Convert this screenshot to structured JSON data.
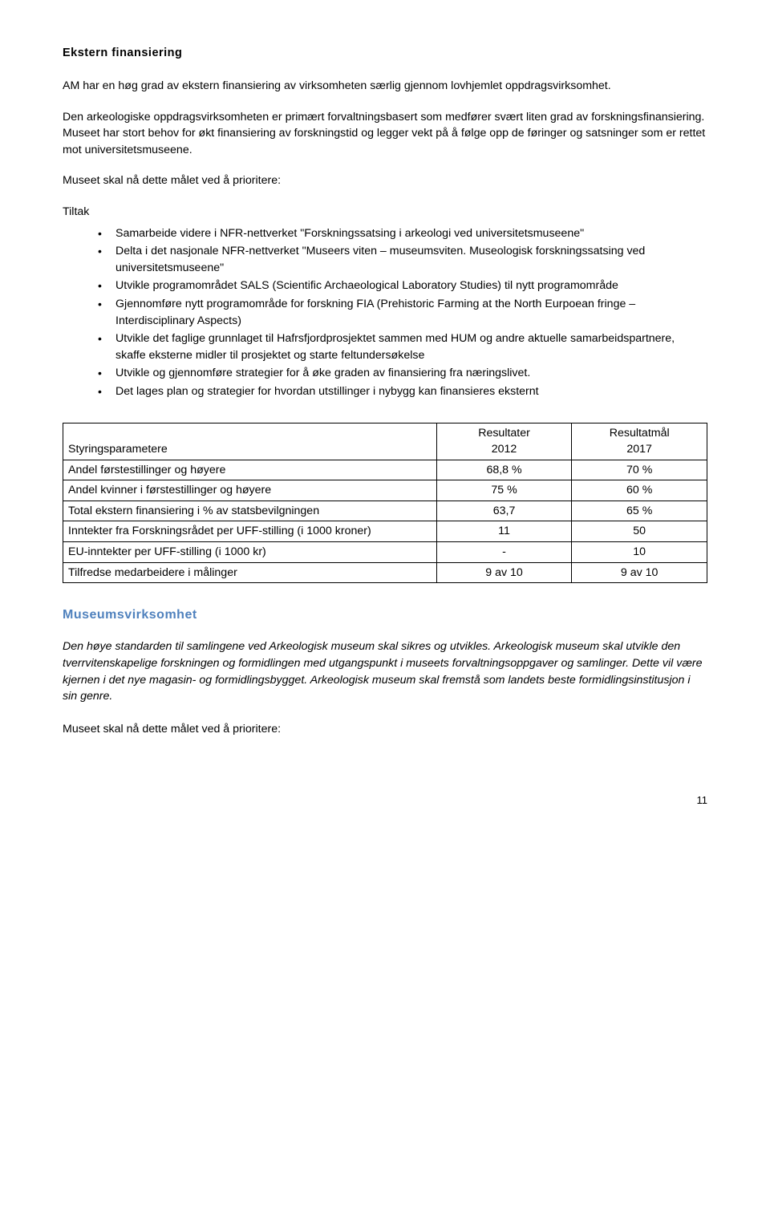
{
  "section1": {
    "title": "Ekstern finansiering",
    "para1": "AM har en høg grad av ekstern finansiering av virksomheten særlig gjennom lovhjemlet oppdragsvirksomhet.",
    "para2": "Den arkeologiske oppdragsvirksomheten er primært forvaltningsbasert som medfører svært liten grad av forskningsfinansiering. Museet har stort behov for økt finansiering av forskningstid og legger vekt på å følge opp de føringer og satsninger som er rettet mot universitetsmuseene.",
    "para3": "Museet skal nå dette målet ved å prioritere:",
    "tiltak_label": "Tiltak",
    "bullets": [
      "Samarbeide videre i NFR-nettverket \"Forskningssatsing i arkeologi ved universitetsmuseene\"",
      "Delta i det nasjonale NFR-nettverket \"Museers viten – museumsviten. Museologisk forskningssatsing ved universitetsmuseene\"",
      "Utvikle programområdet SALS (Scientific Archaeological Laboratory Studies) til nytt programområde",
      "Gjennomføre nytt programområde for forskning FIA (Prehistoric Farming at the North Eurpoean fringe – Interdisciplinary Aspects)",
      "Utvikle det faglige grunnlaget til Hafrsfjordprosjektet sammen med HUM og andre aktuelle samarbeidspartnere, skaffe eksterne midler til prosjektet og starte feltundersøkelse",
      "Utvikle og gjennomføre strategier for å øke graden av finansiering fra næringslivet.",
      "Det lages plan og strategier for hvordan utstillinger i nybygg kan finansieres eksternt"
    ]
  },
  "table": {
    "header_col0": "Styringsparametere",
    "header_col1_line1": "Resultater",
    "header_col1_line2": "2012",
    "header_col2_line1": "Resultatmål",
    "header_col2_line2": "2017",
    "rows": [
      {
        "label": "Andel førstestillinger og høyere",
        "a": "68,8 %",
        "b": "70 %"
      },
      {
        "label": "Andel kvinner i førstestillinger og høyere",
        "a": "75 %",
        "b": "60 %"
      },
      {
        "label": "Total ekstern finansiering i % av statsbevilgningen",
        "a": "63,7",
        "b": "65 %"
      },
      {
        "label": "Inntekter fra Forskningsrådet per UFF-stilling (i 1000 kroner)",
        "a": "11",
        "b": "50"
      },
      {
        "label": "EU-inntekter per UFF-stilling (i 1000 kr)",
        "a": "-",
        "b": "10"
      },
      {
        "label": "Tilfredse medarbeidere i målinger",
        "a": "9 av 10",
        "b": "9 av 10"
      }
    ]
  },
  "section2": {
    "heading": "Museumsvirksomhet",
    "italic_para": "Den høye standarden til samlingene ved Arkeologisk museum skal sikres og utvikles. Arkeologisk museum skal utvikle den tverrvitenskapelige forskningen og formidlingen med utgangspunkt i museets forvaltningsoppgaver og samlinger. Dette vil være kjernen i det nye magasin- og formidlingsbygget. Arkeologisk museum skal fremstå som landets beste formidlingsinstitusjon i sin genre.",
    "closing_para": "Museet skal nå dette målet ved å prioritere:"
  },
  "page_number": "11"
}
